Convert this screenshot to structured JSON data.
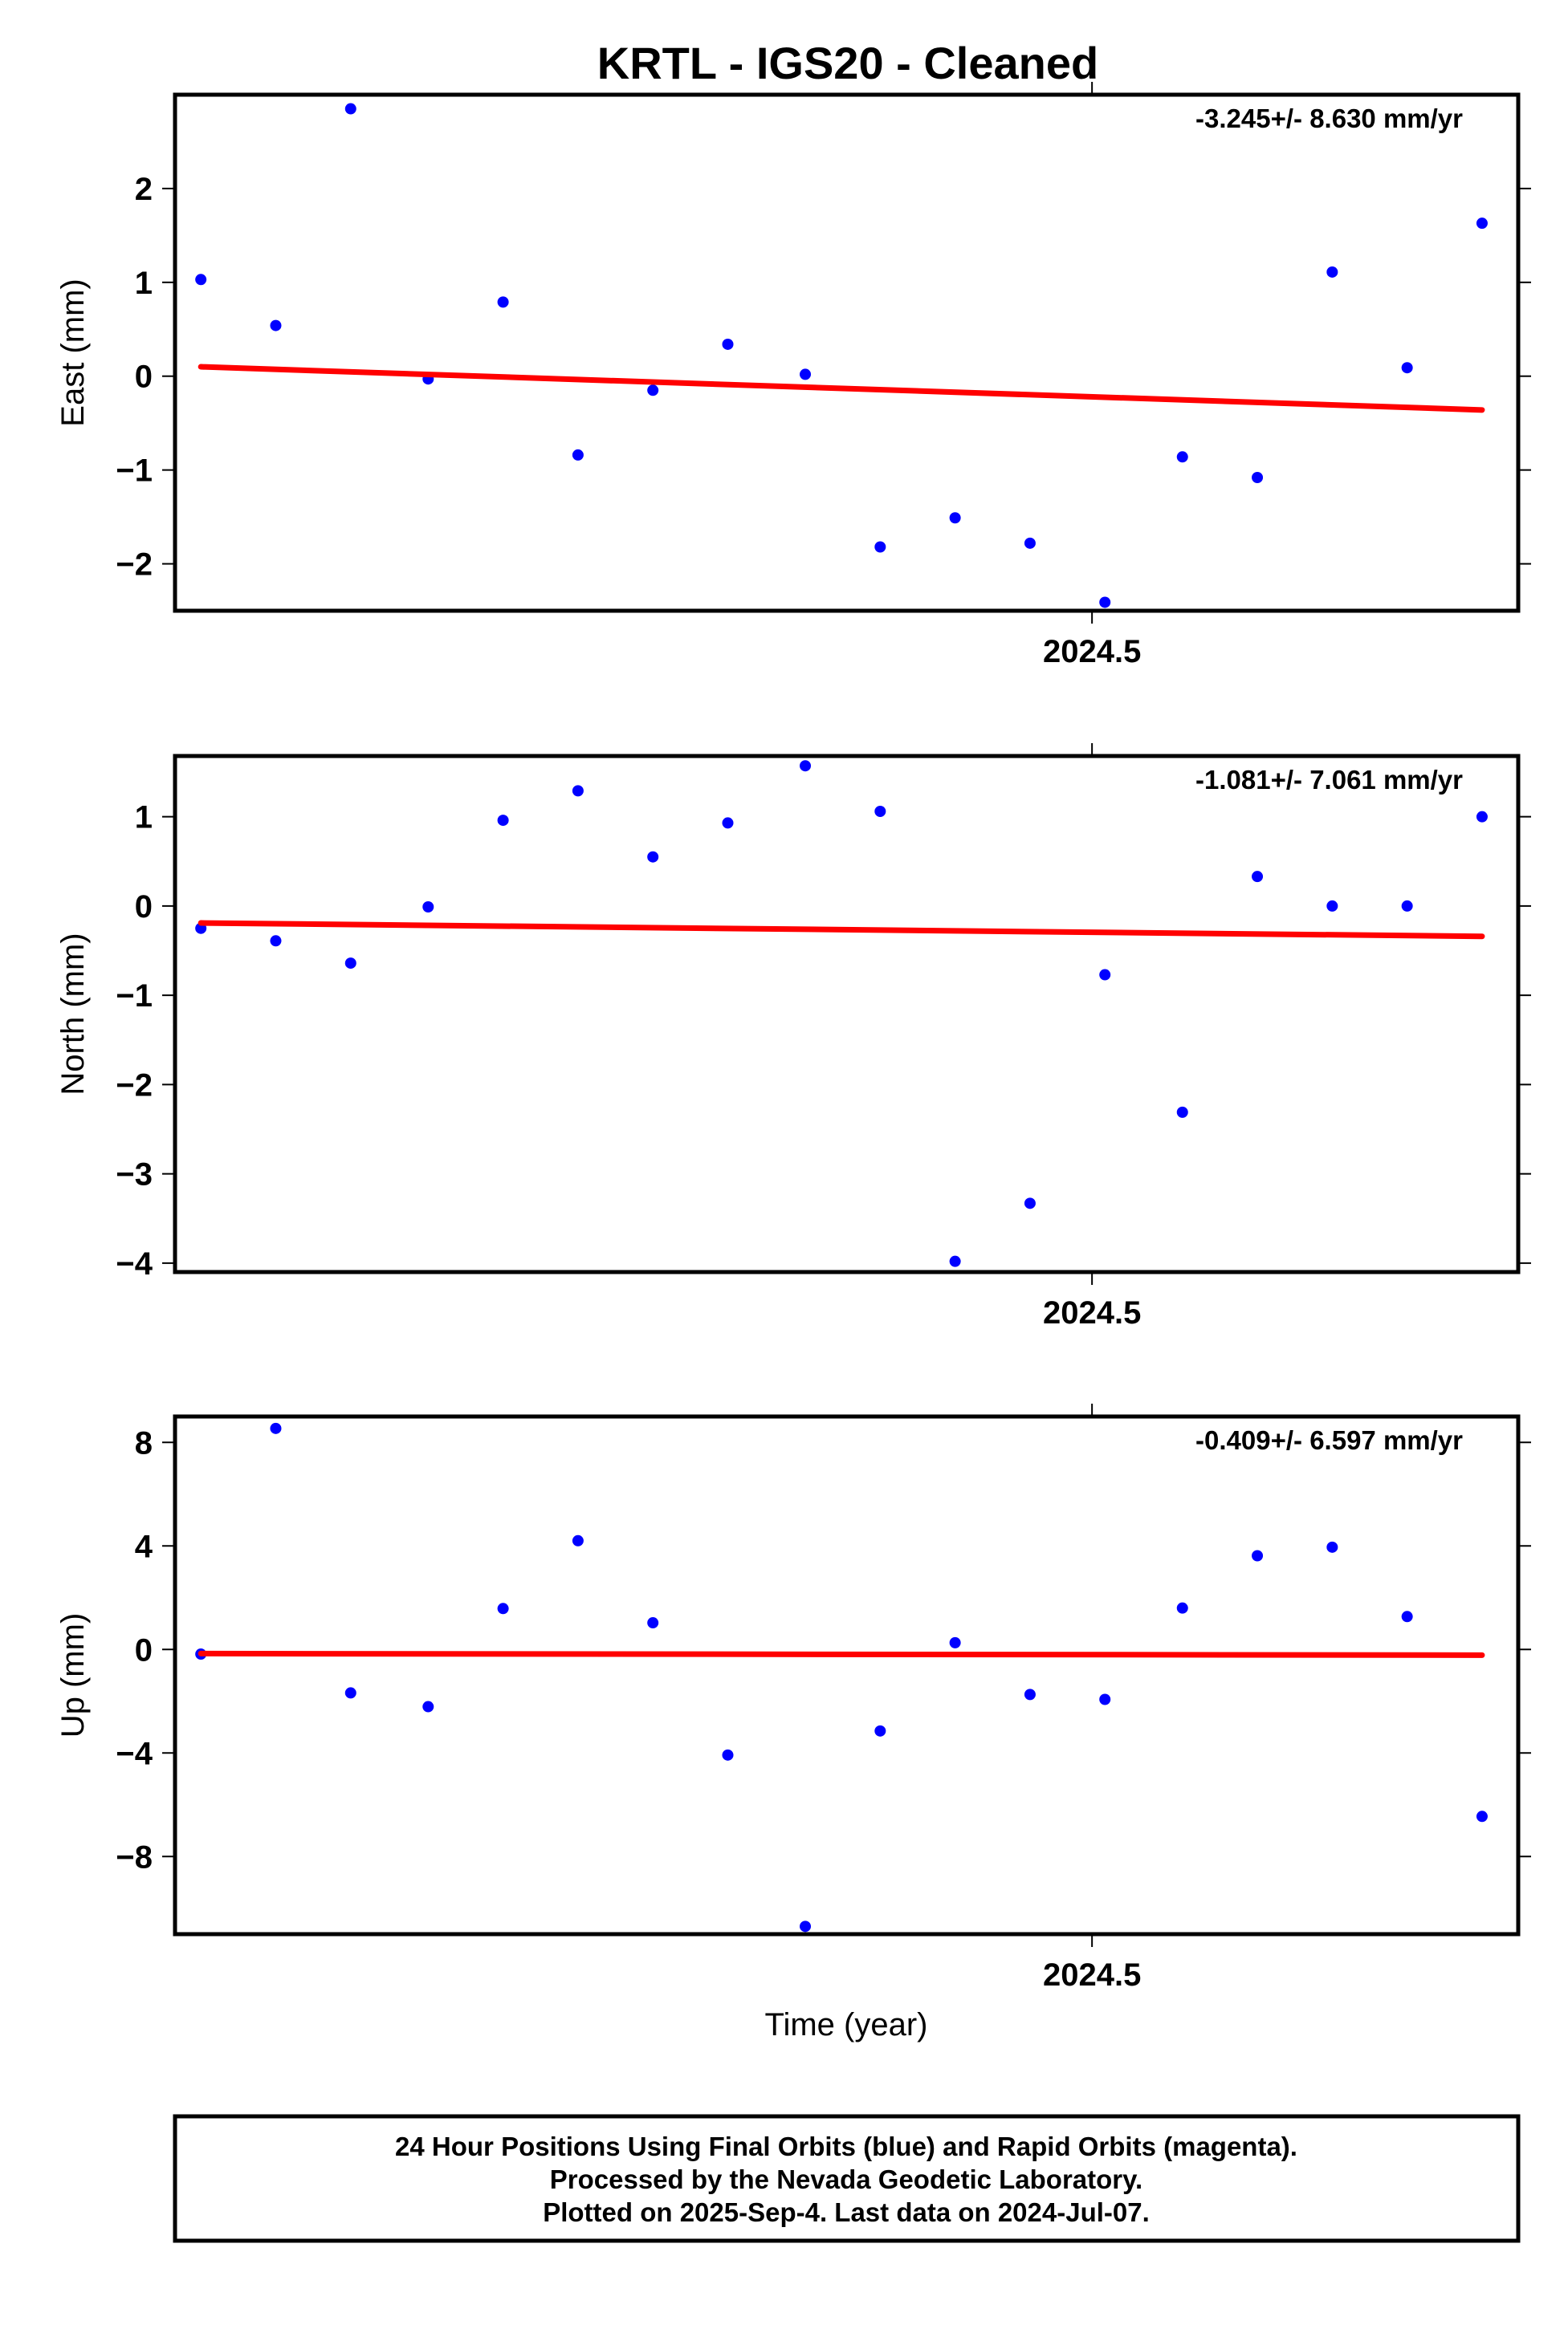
{
  "title": "KRTL  - IGS20 - Cleaned",
  "footer": {
    "line1": "24 Hour Positions Using Final Orbits (blue) and Rapid Orbits (magenta).",
    "line2": "Processed by the Nevada Geodetic Laboratory.",
    "line3": "Plotted on 2025-Sep-4. Last data on 2024-Jul-07."
  },
  "colors": {
    "points": "#0000ff",
    "trend": "#ff0000",
    "frame": "#000000"
  },
  "chart_data": [
    {
      "type": "scatter",
      "name": "east",
      "ylabel": "East (mm)",
      "xlabel": "",
      "rate_label": "-3.245+/- 8.630 mm/yr",
      "xlim": [
        2024.4645,
        2024.5165
      ],
      "ylim": [
        -2.5,
        3.0
      ],
      "yticks": [
        -2,
        -1,
        0,
        1,
        2
      ],
      "ytick_labels": [
        "−2",
        "−1",
        "0",
        "1",
        "2"
      ],
      "xticks": [
        2024.5
      ],
      "xtick_labels": [
        "2024.5"
      ],
      "x": [
        2024.4655,
        2024.4684,
        2024.4713,
        2024.4743,
        2024.4772,
        2024.4801,
        2024.483,
        2024.4859,
        2024.4889,
        2024.4918,
        2024.4947,
        2024.4976,
        2024.5005,
        2024.5035,
        2024.5064,
        2024.5093,
        2024.5122,
        2024.5151
      ],
      "y": [
        1.03,
        0.54,
        2.85,
        -0.03,
        0.79,
        -0.84,
        -0.15,
        0.34,
        0.02,
        -1.82,
        -1.51,
        -1.78,
        -2.41,
        -0.86,
        -1.08,
        1.11,
        0.09,
        1.63
      ],
      "trend": {
        "x": [
          2024.4655,
          2024.5151
        ],
        "y": [
          0.1,
          -0.36
        ]
      }
    },
    {
      "type": "scatter",
      "name": "north",
      "ylabel": "North (mm)",
      "xlabel": "",
      "rate_label": "-1.081+/- 7.061 mm/yr",
      "xlim": [
        2024.4645,
        2024.5165
      ],
      "ylim": [
        -4.1,
        1.68
      ],
      "yticks": [
        -4,
        -3,
        -2,
        -1,
        0,
        1
      ],
      "ytick_labels": [
        "−4",
        "−3",
        "−2",
        "−1",
        "0",
        "1"
      ],
      "xticks": [
        2024.5
      ],
      "xtick_labels": [
        "2024.5"
      ],
      "x": [
        2024.4655,
        2024.4684,
        2024.4713,
        2024.4743,
        2024.4772,
        2024.4801,
        2024.483,
        2024.4859,
        2024.4889,
        2024.4918,
        2024.4947,
        2024.4976,
        2024.5005,
        2024.5035,
        2024.5064,
        2024.5093,
        2024.5122,
        2024.5151
      ],
      "y": [
        -0.25,
        -0.39,
        -0.64,
        -0.01,
        0.96,
        1.29,
        0.55,
        0.93,
        1.57,
        1.06,
        -3.98,
        -3.33,
        -0.77,
        -2.31,
        0.33,
        0.0,
        0.0,
        1.0
      ],
      "trend": {
        "x": [
          2024.4655,
          2024.5151
        ],
        "y": [
          -0.19,
          -0.34
        ]
      }
    },
    {
      "type": "scatter",
      "name": "up",
      "ylabel": "Up (mm)",
      "xlabel": "Time (year)",
      "rate_label": "-0.409+/- 6.597 mm/yr",
      "xlim": [
        2024.4645,
        2024.5165
      ],
      "ylim": [
        -11.0,
        9.0
      ],
      "yticks": [
        -8,
        -4,
        0,
        4,
        8
      ],
      "ytick_labels": [
        "−8",
        "−4",
        "0",
        "4",
        "8"
      ],
      "xticks": [
        2024.5
      ],
      "xtick_labels": [
        "2024.5"
      ],
      "x": [
        2024.4655,
        2024.4684,
        2024.4713,
        2024.4743,
        2024.4772,
        2024.4801,
        2024.483,
        2024.4859,
        2024.4889,
        2024.4918,
        2024.4947,
        2024.4976,
        2024.5005,
        2024.5035,
        2024.5064,
        2024.5093,
        2024.5122,
        2024.5151
      ],
      "y": [
        -0.18,
        8.54,
        -1.68,
        -2.21,
        1.58,
        4.2,
        1.03,
        -4.08,
        -10.7,
        -3.15,
        0.26,
        -1.74,
        -1.93,
        1.6,
        3.62,
        3.95,
        1.27,
        -6.45
      ],
      "trend": {
        "x": [
          2024.4655,
          2024.5151
        ],
        "y": [
          -0.16,
          -0.22
        ]
      }
    }
  ]
}
